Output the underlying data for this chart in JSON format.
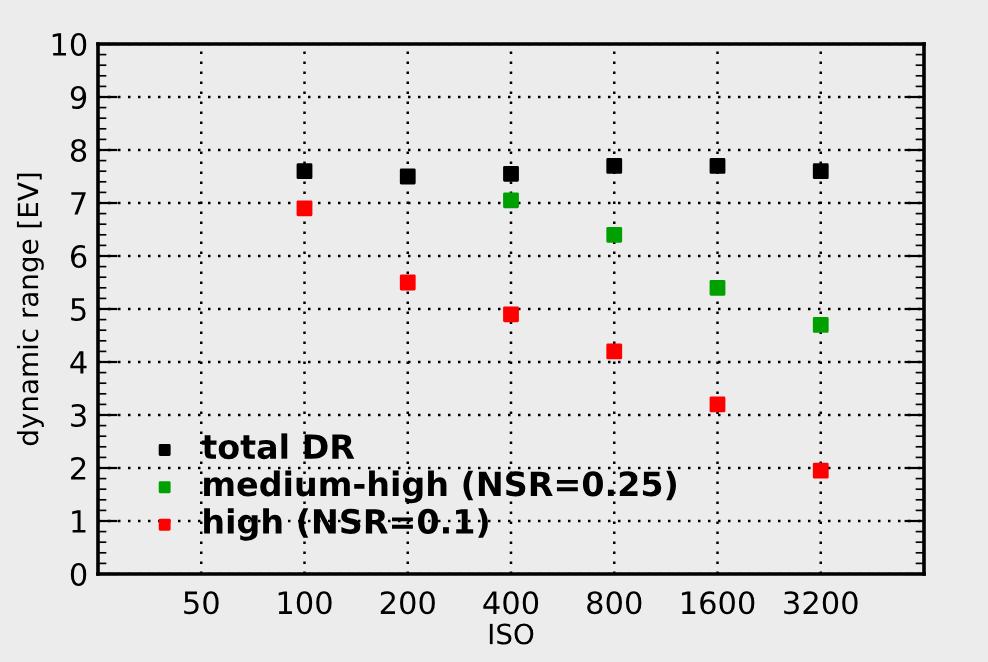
{
  "chart_data": {
    "type": "scatter",
    "xlabel": "ISO",
    "ylabel": "dynamic range [EV]",
    "x": [
      100,
      200,
      400,
      800,
      1600,
      3200
    ],
    "series": [
      {
        "name": "total DR",
        "color": "#000000",
        "values": [
          7.6,
          7.5,
          7.55,
          7.7,
          7.7,
          7.6
        ]
      },
      {
        "name": "medium-high (NSR=0.25)",
        "color": "#00a000",
        "values": [
          null,
          null,
          7.05,
          6.4,
          5.4,
          4.7
        ]
      },
      {
        "name": "high (NSR=0.1)",
        "color": "#ff0000",
        "values": [
          6.9,
          5.5,
          4.9,
          4.2,
          3.2,
          1.95
        ]
      }
    ],
    "log": "x",
    "xlim": [
      25,
      6400
    ],
    "xticks": [
      50,
      100,
      200,
      400,
      800,
      1600,
      3200
    ],
    "ylim": [
      0,
      10
    ],
    "yticks": [
      0,
      1,
      2,
      3,
      4,
      5,
      6,
      7,
      8,
      9,
      10
    ],
    "grid": true,
    "legend": "bottom left",
    "marker": "square"
  }
}
